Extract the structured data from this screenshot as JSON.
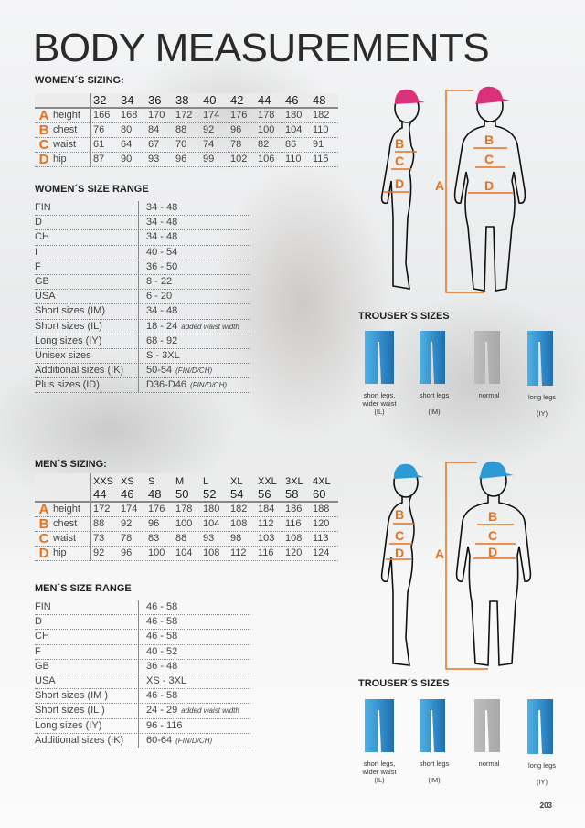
{
  "title": "BODY MEASUREMENTS",
  "page_number": "203",
  "colors": {
    "accent_orange": "#e8701e",
    "women_cap": "#d9317a",
    "men_cap": "#2d9ad6",
    "pants_blue": "#2a8fd0",
    "pants_gray": "#b3b3b3"
  },
  "women_sizing": {
    "heading": "WOMEN´S SIZING:",
    "sizes": [
      "32",
      "34",
      "36",
      "38",
      "40",
      "42",
      "44",
      "46",
      "48"
    ],
    "rows": [
      {
        "letter": "A",
        "name": "height",
        "values": [
          "166",
          "168",
          "170",
          "172",
          "174",
          "176",
          "178",
          "180",
          "182"
        ]
      },
      {
        "letter": "B",
        "name": "chest",
        "values": [
          "76",
          "80",
          "84",
          "88",
          "92",
          "96",
          "100",
          "104",
          "110"
        ]
      },
      {
        "letter": "C",
        "name": "waist",
        "values": [
          "61",
          "64",
          "67",
          "70",
          "74",
          "78",
          "82",
          "86",
          "91"
        ]
      },
      {
        "letter": "D",
        "name": "hip",
        "values": [
          "87",
          "90",
          "93",
          "96",
          "99",
          "102",
          "106",
          "110",
          "115"
        ]
      }
    ]
  },
  "women_range": {
    "heading": "WOMEN´S  SIZE RANGE",
    "rows": [
      {
        "key": "FIN",
        "value": "34 - 48"
      },
      {
        "key": "D",
        "value": "34 - 48"
      },
      {
        "key": "CH",
        "value": "34 - 48"
      },
      {
        "key": "I",
        "value": "40 - 54"
      },
      {
        "key": "F",
        "value": "36 - 50"
      },
      {
        "key": "GB",
        "value": "8 - 22"
      },
      {
        "key": "USA",
        "value": "6 - 20"
      },
      {
        "key": "Short sizes (IM)",
        "value": "34 - 48"
      },
      {
        "key": "Short sizes (IL)",
        "value": "18 - 24",
        "note": "added waist width"
      },
      {
        "key": "Long sizes (IY)",
        "value": "68 - 92"
      },
      {
        "key": "Unisex sizes",
        "value": "S - 3XL"
      },
      {
        "key": "Additional sizes (IK)",
        "value": "50-54",
        "note": "(FIN/D/CH)"
      },
      {
        "key": "Plus sizes (ID)",
        "value": "D36-D46",
        "note": "(FIN/D/CH)"
      }
    ]
  },
  "men_sizing": {
    "heading": "MEN´S SIZING:",
    "size_letters": [
      "XXS",
      "XS",
      "S",
      "M",
      "L",
      "XL",
      "XXL",
      "3XL",
      "4XL"
    ],
    "sizes": [
      "44",
      "46",
      "48",
      "50",
      "52",
      "54",
      "56",
      "58",
      "60"
    ],
    "rows": [
      {
        "letter": "A",
        "name": "height",
        "values": [
          "172",
          "174",
          "176",
          "178",
          "180",
          "182",
          "184",
          "186",
          "188"
        ]
      },
      {
        "letter": "B",
        "name": "chest",
        "values": [
          "88",
          "92",
          "96",
          "100",
          "104",
          "108",
          "112",
          "116",
          "120"
        ]
      },
      {
        "letter": "C",
        "name": "waist",
        "values": [
          "73",
          "78",
          "83",
          "88",
          "93",
          "98",
          "103",
          "108",
          "113"
        ]
      },
      {
        "letter": "D",
        "name": "hip",
        "values": [
          "92",
          "96",
          "100",
          "104",
          "108",
          "112",
          "116",
          "120",
          "124"
        ]
      }
    ]
  },
  "men_range": {
    "heading": "MEN´S SIZE RANGE",
    "rows": [
      {
        "key": "FIN",
        "value": "46 - 58"
      },
      {
        "key": "D",
        "value": "46 - 58"
      },
      {
        "key": "CH",
        "value": "46 - 58"
      },
      {
        "key": "F",
        "value": "40 - 52"
      },
      {
        "key": "GB",
        "value": "36 - 48"
      },
      {
        "key": "USA",
        "value": "XS - 3XL"
      },
      {
        "key": "Short sizes (IM )",
        "value": "46 - 58"
      },
      {
        "key": "Short sizes (IL )",
        "value": "24 - 29",
        "note": "added waist width"
      },
      {
        "key": "Long sizes (IY)",
        "value": "96 - 116"
      },
      {
        "key": "Additional sizes (IK)",
        "value": "60-64",
        "note": "(FIN/D/CH)"
      }
    ]
  },
  "figure_labels": {
    "A": "A",
    "B": "B",
    "C": "C",
    "D": "D"
  },
  "trousers": {
    "heading": "TROUSER´S SIZES",
    "items": [
      {
        "label": "short legs,\nwider waist",
        "code": "(IL)",
        "color": "blue"
      },
      {
        "label": "short legs",
        "code": "(IM)",
        "color": "blue"
      },
      {
        "label": "normal",
        "code": "",
        "color": "gray"
      },
      {
        "label": "long legs",
        "code": "(IY)",
        "color": "blue"
      }
    ]
  }
}
